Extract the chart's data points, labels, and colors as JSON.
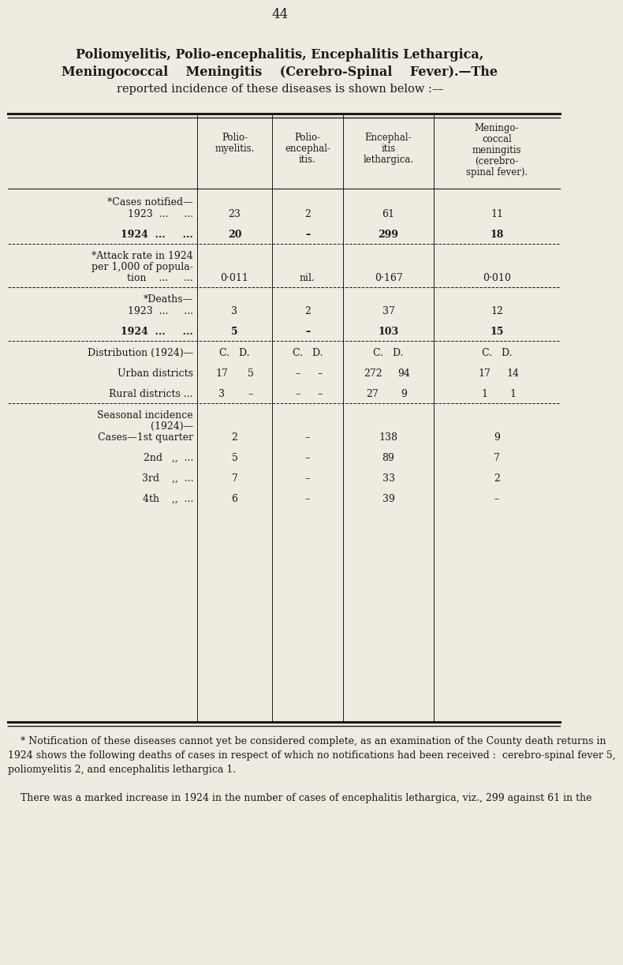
{
  "page_number": "44",
  "bg_color": "#f0ebe0",
  "text_color": "#1a1a1a",
  "title_line1": "Poliomyelitis, Polio-encephalitis, Encephalitis Lethargica,",
  "title_line2": "Meningococcal    Meningitis    (Cerebro-Spinal    Fever).—The",
  "title_line3": "reported incidence of these diseases is shown below :—",
  "col_headers": [
    [
      "Polio-",
      "myelitis."
    ],
    [
      "Polio-",
      "encephal-",
      "itis."
    ],
    [
      "Encephal-",
      "itis",
      "lethargica."
    ],
    [
      "Meningo-",
      "coccal",
      "meningitis",
      "(cerebro-",
      "spinal fever)."
    ]
  ],
  "footnotes": [
    "    * Notification of these diseases cannot yet be considered complete, as an examination of the County death returns in",
    "1924 shows the following deaths of cases in respect of which no notifications had been received :  cerebro-spinal fever 5,",
    "poliomyelitis 2, and encephalitis lethargica 1.",
    "",
    "    There was a marked increase in 1924 in the number of cases of encephalitis lethargica, viz., 299 against 61 in the"
  ]
}
